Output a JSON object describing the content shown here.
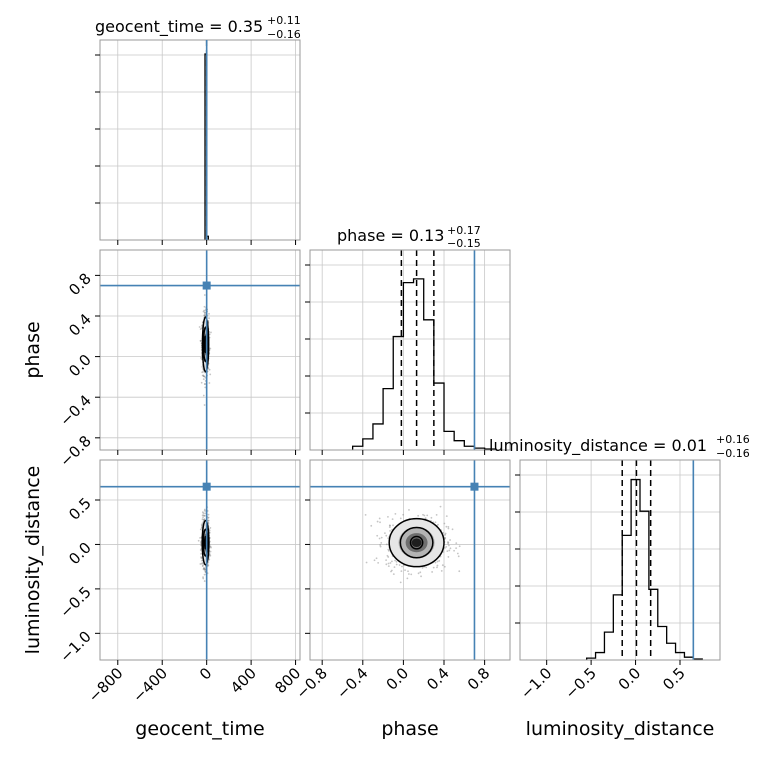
{
  "colors": {
    "truth": "#4682b4",
    "hist": "#000000",
    "grid": "#c8c8c8",
    "scatter": "#8c8c8c"
  },
  "chart_data": {
    "type": "corner",
    "parameters": [
      "geocent_time",
      "phase",
      "luminosity_distance"
    ],
    "truths": {
      "geocent_time": 0.0,
      "phase": 0.7,
      "luminosity_distance": 0.65
    },
    "grid": true,
    "titles": [
      {
        "param": "geocent_time",
        "prefix": "geocent_time = 0.35",
        "plus": "+0.11",
        "minus": "−0.16"
      },
      {
        "param": "phase",
        "prefix": "phase = 0.13",
        "plus": "+0.17",
        "minus": "−0.15"
      },
      {
        "param": "luminosity_distance",
        "prefix": "luminosity_distance = 0.01",
        "plus": "+0.16",
        "minus": "−0.16"
      }
    ],
    "ranges": {
      "geocent_time": [
        -960,
        840
      ],
      "phase": [
        -0.92,
        1.05
      ],
      "luminosity_distance": [
        -1.3,
        0.95
      ]
    },
    "ticks": {
      "geocent_time": [
        -800,
        -400,
        0,
        400,
        800
      ],
      "phase": [
        -0.8,
        -0.4,
        0.0,
        0.4,
        0.8
      ],
      "luminosity_distance": [
        -1.0,
        -0.5,
        0.0,
        0.5
      ]
    },
    "tick_labels": {
      "geocent_time": [
        "−800",
        "−400",
        "0",
        "400",
        "800"
      ],
      "phase": [
        "−0.8",
        "−0.4",
        "0.0",
        "0.4",
        "0.8"
      ],
      "luminosity_distance": [
        "−1.0",
        "−0.5",
        "0.0",
        "0.5"
      ]
    },
    "x_tick_labels_lum": [
      "−1.0",
      "−0.5",
      "0.0",
      "0.5"
    ],
    "axis_labels": {
      "geocent_time": "geocent_time",
      "phase": "phase",
      "luminosity_distance": "luminosity_distance"
    },
    "histograms": {
      "geocent_time": {
        "bins": [
          -15,
          0,
          15
        ],
        "counts": [
          1.0,
          0.02
        ],
        "ymax": 1.0,
        "quantiles": [
          0.0
        ]
      },
      "phase": {
        "bins": [
          -0.5,
          -0.4,
          -0.3,
          -0.2,
          -0.1,
          0.0,
          0.1,
          0.2,
          0.3,
          0.4,
          0.5,
          0.6,
          0.7,
          0.8,
          0.9
        ],
        "counts": [
          0.02,
          0.06,
          0.14,
          0.33,
          0.61,
          0.9,
          0.92,
          0.7,
          0.36,
          0.1,
          0.05,
          0.02,
          0.01,
          0.005
        ],
        "ymax": 1.0,
        "quantiles": [
          -0.02,
          0.13,
          0.3
        ]
      },
      "luminosity_distance": {
        "bins": [
          -0.55,
          -0.45,
          -0.35,
          -0.25,
          -0.15,
          -0.05,
          0.05,
          0.15,
          0.25,
          0.35,
          0.45,
          0.55,
          0.65,
          0.75
        ],
        "counts": [
          0.01,
          0.04,
          0.15,
          0.35,
          0.67,
          0.97,
          0.8,
          0.38,
          0.18,
          0.09,
          0.04,
          0.015,
          0.005
        ],
        "ymax": 1.0,
        "quantiles": [
          -0.15,
          0.01,
          0.17
        ]
      }
    },
    "contours_2d": [
      {
        "x": "geocent_time",
        "y": "phase",
        "center": [
          -10,
          0.12
        ],
        "levels_sigma": [
          [
            8,
            0.08
          ],
          [
            18,
            0.17
          ],
          [
            28,
            0.27
          ]
        ]
      },
      {
        "x": "geocent_time",
        "y": "luminosity_distance",
        "center": [
          -10,
          0.02
        ],
        "levels_sigma": [
          [
            8,
            0.07
          ],
          [
            20,
            0.15
          ],
          [
            30,
            0.25
          ]
        ]
      },
      {
        "x": "phase",
        "y": "luminosity_distance",
        "center": [
          0.13,
          0.02
        ],
        "levels_sigma": [
          [
            0.06,
            0.07
          ],
          [
            0.16,
            0.17
          ],
          [
            0.27,
            0.27
          ]
        ]
      }
    ]
  }
}
